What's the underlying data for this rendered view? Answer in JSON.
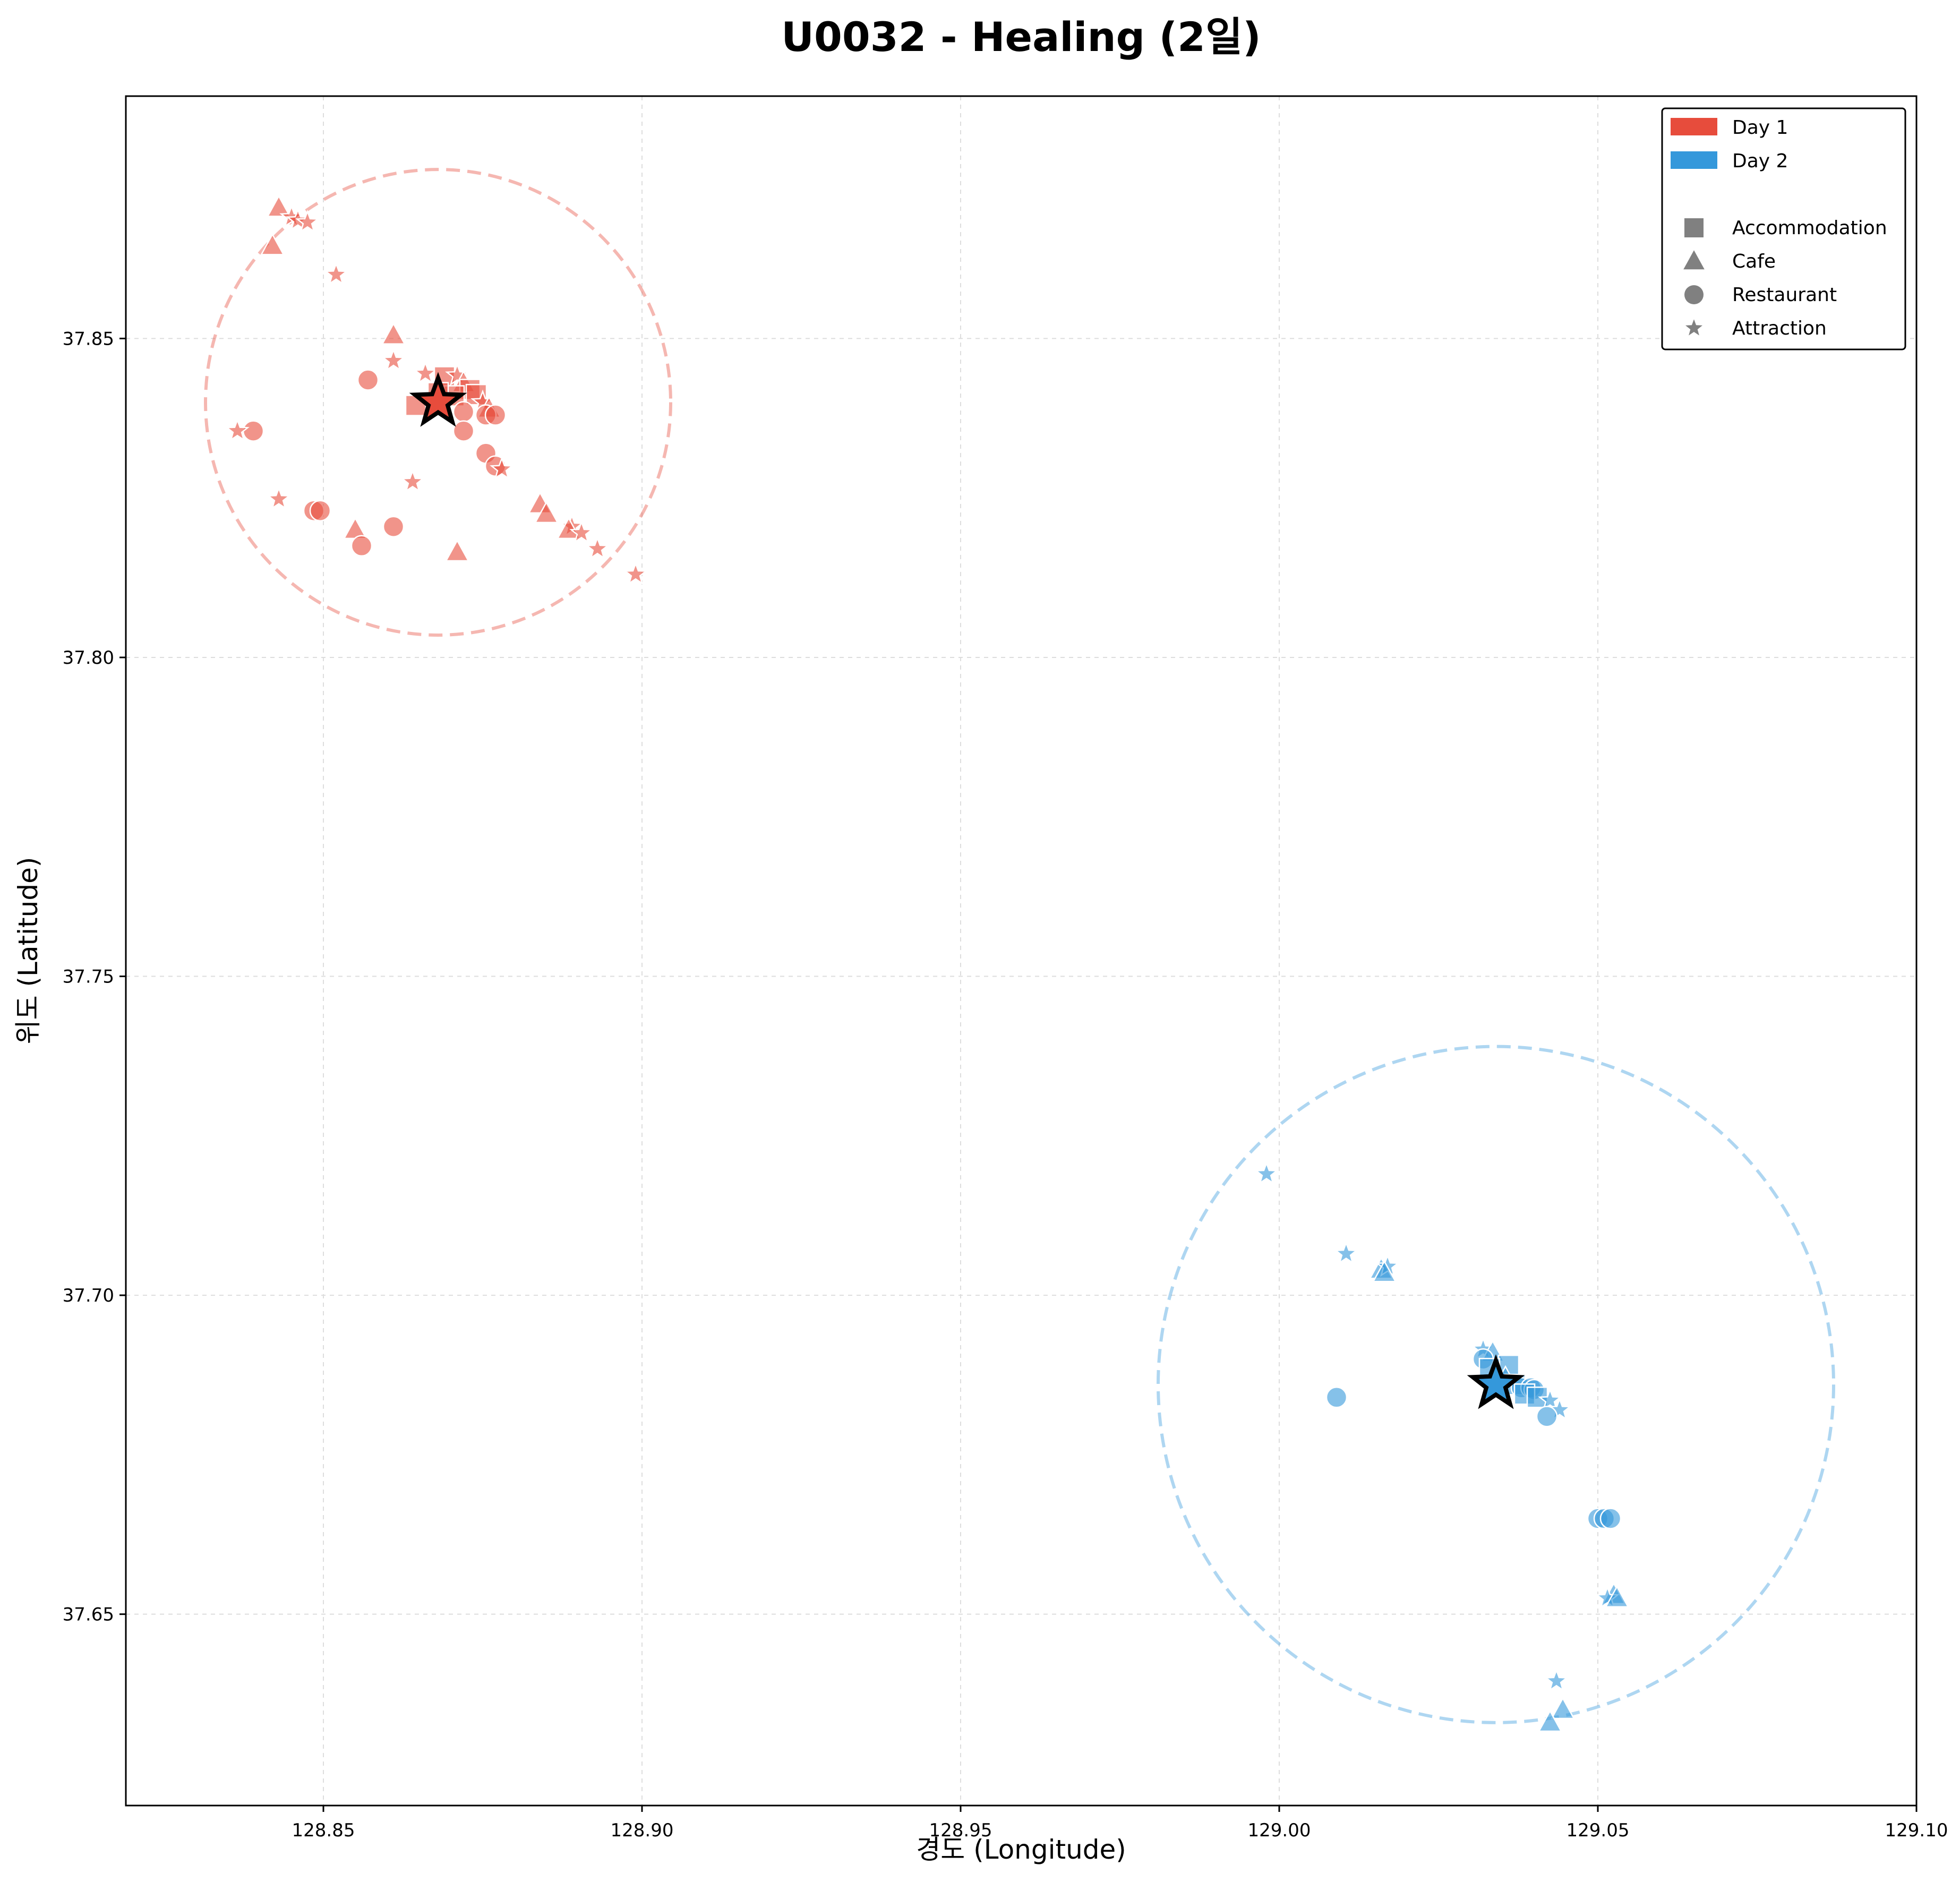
{
  "chart_data": {
    "type": "scatter",
    "title": "U0032 - Healing (2일)",
    "xlabel": "경도 (Longitude)",
    "ylabel": "위도 (Latitude)",
    "xlim": [
      128.819,
      129.1
    ],
    "ylim": [
      37.62,
      37.888
    ],
    "xticks": [
      128.85,
      128.9,
      128.95,
      129.0,
      129.05,
      129.1
    ],
    "xtick_labels": [
      "128.85",
      "128.90",
      "128.95",
      "129.00",
      "129.05",
      "129.10"
    ],
    "yticks": [
      37.65,
      37.7,
      37.75,
      37.8,
      37.85
    ],
    "ytick_labels": [
      "37.65",
      "37.70",
      "37.75",
      "37.80",
      "37.85"
    ],
    "grid": true,
    "legend_position": "top-right",
    "legend": {
      "days": [
        {
          "label": "Day 1",
          "color": "#e74c3c"
        },
        {
          "label": "Day 2",
          "color": "#3498db"
        }
      ],
      "categories": [
        {
          "label": "Accommodation",
          "marker": "square"
        },
        {
          "label": "Cafe",
          "marker": "triangle"
        },
        {
          "label": "Restaurant",
          "marker": "circle"
        },
        {
          "label": "Attraction",
          "marker": "star"
        }
      ]
    },
    "series": [
      {
        "name": "Day 1",
        "color": "#e74c3c",
        "centroid": [
          128.868,
          37.84
        ],
        "radius_deg": 0.0365,
        "points": [
          {
            "lon": 128.843,
            "lat": 37.8705,
            "category": "Cafe"
          },
          {
            "lon": 128.845,
            "lat": 37.869,
            "category": "Attraction"
          },
          {
            "lon": 128.846,
            "lat": 37.8685,
            "category": "Attraction"
          },
          {
            "lon": 128.8475,
            "lat": 37.8682,
            "category": "Attraction"
          },
          {
            "lon": 128.842,
            "lat": 37.8645,
            "category": "Cafe"
          },
          {
            "lon": 128.852,
            "lat": 37.86,
            "category": "Attraction"
          },
          {
            "lon": 128.861,
            "lat": 37.8505,
            "category": "Cafe"
          },
          {
            "lon": 128.861,
            "lat": 37.8465,
            "category": "Attraction"
          },
          {
            "lon": 128.857,
            "lat": 37.8435,
            "category": "Restaurant"
          },
          {
            "lon": 128.866,
            "lat": 37.8445,
            "category": "Attraction"
          },
          {
            "lon": 128.869,
            "lat": 37.844,
            "category": "Accommodation"
          },
          {
            "lon": 128.871,
            "lat": 37.8442,
            "category": "Attraction"
          },
          {
            "lon": 128.872,
            "lat": 37.843,
            "category": "Cafe"
          },
          {
            "lon": 128.873,
            "lat": 37.842,
            "category": "Accommodation"
          },
          {
            "lon": 128.874,
            "lat": 37.8412,
            "category": "Accommodation"
          },
          {
            "lon": 128.875,
            "lat": 37.84,
            "category": "Attraction"
          },
          {
            "lon": 128.876,
            "lat": 37.839,
            "category": "Cafe"
          },
          {
            "lon": 128.8705,
            "lat": 37.841,
            "category": "Accommodation"
          },
          {
            "lon": 128.868,
            "lat": 37.8415,
            "category": "Accommodation"
          },
          {
            "lon": 128.8645,
            "lat": 37.8395,
            "category": "Accommodation"
          },
          {
            "lon": 128.872,
            "lat": 37.8385,
            "category": "Restaurant"
          },
          {
            "lon": 128.8755,
            "lat": 37.838,
            "category": "Restaurant"
          },
          {
            "lon": 128.877,
            "lat": 37.838,
            "category": "Restaurant"
          },
          {
            "lon": 128.872,
            "lat": 37.8355,
            "category": "Restaurant"
          },
          {
            "lon": 128.839,
            "lat": 37.8355,
            "category": "Restaurant"
          },
          {
            "lon": 128.8365,
            "lat": 37.8355,
            "category": "Attraction"
          },
          {
            "lon": 128.8755,
            "lat": 37.832,
            "category": "Restaurant"
          },
          {
            "lon": 128.877,
            "lat": 37.83,
            "category": "Restaurant"
          },
          {
            "lon": 128.878,
            "lat": 37.8295,
            "category": "Attraction"
          },
          {
            "lon": 128.864,
            "lat": 37.8275,
            "category": "Attraction"
          },
          {
            "lon": 128.843,
            "lat": 37.8248,
            "category": "Attraction"
          },
          {
            "lon": 128.8485,
            "lat": 37.823,
            "category": "Restaurant"
          },
          {
            "lon": 128.8495,
            "lat": 37.823,
            "category": "Restaurant"
          },
          {
            "lon": 128.884,
            "lat": 37.824,
            "category": "Cafe"
          },
          {
            "lon": 128.885,
            "lat": 37.8225,
            "category": "Cafe"
          },
          {
            "lon": 128.861,
            "lat": 37.8205,
            "category": "Restaurant"
          },
          {
            "lon": 128.855,
            "lat": 37.82,
            "category": "Cafe"
          },
          {
            "lon": 128.889,
            "lat": 37.8205,
            "category": "Attraction"
          },
          {
            "lon": 128.8885,
            "lat": 37.82,
            "category": "Cafe"
          },
          {
            "lon": 128.8905,
            "lat": 37.8195,
            "category": "Attraction"
          },
          {
            "lon": 128.856,
            "lat": 37.8175,
            "category": "Restaurant"
          },
          {
            "lon": 128.871,
            "lat": 37.8165,
            "category": "Cafe"
          },
          {
            "lon": 128.893,
            "lat": 37.817,
            "category": "Attraction"
          },
          {
            "lon": 128.899,
            "lat": 37.813,
            "category": "Attraction"
          }
        ]
      },
      {
        "name": "Day 2",
        "color": "#3498db",
        "centroid": [
          129.034,
          37.686
        ],
        "radius_deg": 0.053,
        "points": [
          {
            "lon": 128.998,
            "lat": 37.719,
            "category": "Attraction"
          },
          {
            "lon": 129.0105,
            "lat": 37.7065,
            "category": "Attraction"
          },
          {
            "lon": 129.016,
            "lat": 37.704,
            "category": "Cafe"
          },
          {
            "lon": 129.017,
            "lat": 37.7045,
            "category": "Attraction"
          },
          {
            "lon": 129.0165,
            "lat": 37.7035,
            "category": "Cafe"
          },
          {
            "lon": 129.032,
            "lat": 37.6915,
            "category": "Attraction"
          },
          {
            "lon": 129.0335,
            "lat": 37.691,
            "category": "Cafe"
          },
          {
            "lon": 129.032,
            "lat": 37.69,
            "category": "Restaurant"
          },
          {
            "lon": 129.036,
            "lat": 37.689,
            "category": "Accommodation"
          },
          {
            "lon": 129.033,
            "lat": 37.6885,
            "category": "Accommodation"
          },
          {
            "lon": 129.0355,
            "lat": 37.687,
            "category": "Cafe"
          },
          {
            "lon": 129.037,
            "lat": 37.686,
            "category": "Accommodation"
          },
          {
            "lon": 129.038,
            "lat": 37.6855,
            "category": "Restaurant"
          },
          {
            "lon": 129.0395,
            "lat": 37.6855,
            "category": "Restaurant"
          },
          {
            "lon": 129.04,
            "lat": 37.6852,
            "category": "Restaurant"
          },
          {
            "lon": 129.0385,
            "lat": 37.6845,
            "category": "Accommodation"
          },
          {
            "lon": 129.0405,
            "lat": 37.684,
            "category": "Accommodation"
          },
          {
            "lon": 129.0425,
            "lat": 37.6835,
            "category": "Attraction"
          },
          {
            "lon": 129.009,
            "lat": 37.684,
            "category": "Restaurant"
          },
          {
            "lon": 129.044,
            "lat": 37.682,
            "category": "Attraction"
          },
          {
            "lon": 129.042,
            "lat": 37.681,
            "category": "Restaurant"
          },
          {
            "lon": 129.05,
            "lat": 37.665,
            "category": "Restaurant"
          },
          {
            "lon": 129.051,
            "lat": 37.665,
            "category": "Restaurant"
          },
          {
            "lon": 129.052,
            "lat": 37.665,
            "category": "Restaurant"
          },
          {
            "lon": 129.0525,
            "lat": 37.653,
            "category": "Cafe"
          },
          {
            "lon": 129.0515,
            "lat": 37.6525,
            "category": "Attraction"
          },
          {
            "lon": 129.053,
            "lat": 37.6525,
            "category": "Cafe"
          },
          {
            "lon": 129.0435,
            "lat": 37.6395,
            "category": "Attraction"
          },
          {
            "lon": 129.0445,
            "lat": 37.635,
            "category": "Cafe"
          },
          {
            "lon": 129.0425,
            "lat": 37.633,
            "category": "Cafe"
          }
        ]
      }
    ]
  }
}
